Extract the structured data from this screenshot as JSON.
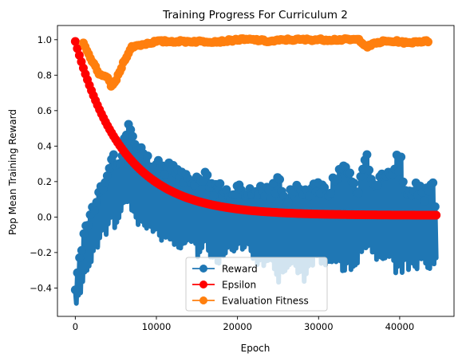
{
  "chart_data": {
    "type": "line",
    "title": "Training Progress For Curriculum 2",
    "xlabel": "Epoch",
    "ylabel": "Pop Mean Training Reward",
    "xlim": [
      -2200,
      46700
    ],
    "ylim": [
      -0.56,
      1.08
    ],
    "xticks": [
      0,
      10000,
      20000,
      30000,
      40000
    ],
    "xtick_labels": [
      "0",
      "10000",
      "20000",
      "30000",
      "40000"
    ],
    "yticks": [
      -0.4,
      -0.2,
      0.0,
      0.2,
      0.4,
      0.6,
      0.8,
      1.0
    ],
    "ytick_labels": [
      "−0.4",
      "−0.2",
      "0.0",
      "0.2",
      "0.4",
      "0.6",
      "0.8",
      "1.0"
    ],
    "grid": false,
    "legend_position": "lower-center",
    "series": [
      {
        "name": "Reward",
        "color": "#1f77b4",
        "marker": "circle",
        "envelope_x": [
          0,
          500,
          1000,
          1500,
          2000,
          2500,
          3000,
          3500,
          4000,
          4500,
          5000,
          5500,
          6000,
          6500,
          7000,
          7500,
          8000,
          8500,
          9000,
          9500,
          10000,
          11000,
          12000,
          13000,
          14000,
          15000,
          16000,
          17000,
          18000,
          19000,
          20000,
          21000,
          22000,
          23000,
          24000,
          25000,
          26000,
          27000,
          28000,
          29000,
          30000,
          31000,
          32000,
          33000,
          33500,
          34000,
          35000,
          36000,
          37000,
          38000,
          39000,
          40000,
          41000,
          42000,
          43000,
          44000,
          44500
        ],
        "envelope_high": [
          -0.4,
          -0.2,
          -0.1,
          0.0,
          0.05,
          0.1,
          0.2,
          0.15,
          0.3,
          0.4,
          0.3,
          0.35,
          0.45,
          0.55,
          0.55,
          0.4,
          0.45,
          0.38,
          0.35,
          0.3,
          0.35,
          0.3,
          0.35,
          0.28,
          0.22,
          0.25,
          0.3,
          0.2,
          0.2,
          0.15,
          0.2,
          0.15,
          0.18,
          0.22,
          0.15,
          0.25,
          0.15,
          0.2,
          0.15,
          0.22,
          0.2,
          0.18,
          0.25,
          0.42,
          0.4,
          0.28,
          0.2,
          0.38,
          0.22,
          0.25,
          0.35,
          0.38,
          0.15,
          0.22,
          0.15,
          0.25,
          0.1
        ],
        "envelope_low": [
          -0.5,
          -0.48,
          -0.4,
          -0.3,
          -0.25,
          -0.2,
          -0.15,
          -0.1,
          -0.1,
          -0.05,
          -0.1,
          0.0,
          0.05,
          0.05,
          0.0,
          -0.05,
          -0.05,
          -0.05,
          -0.1,
          -0.1,
          -0.1,
          -0.15,
          -0.15,
          -0.2,
          -0.15,
          -0.25,
          -0.2,
          -0.3,
          -0.25,
          -0.2,
          -0.2,
          -0.2,
          -0.25,
          -0.3,
          -0.25,
          -0.4,
          -0.3,
          -0.25,
          -0.4,
          -0.3,
          -0.25,
          -0.3,
          -0.3,
          -0.35,
          -0.4,
          -0.3,
          -0.25,
          -0.2,
          -0.25,
          -0.25,
          -0.3,
          -0.35,
          -0.3,
          -0.3,
          -0.25,
          -0.35,
          -0.3
        ]
      },
      {
        "name": "Epsilon",
        "color": "#ff0000",
        "marker": "circle",
        "function": "0.01 + 0.98 * exp(-x / 6000)",
        "x_start": 0,
        "x_end": 44500
      },
      {
        "name": "Evaluation Fitness",
        "color": "#ff7f0e",
        "marker": "circle",
        "x": [
          1000,
          1500,
          2000,
          2500,
          3000,
          3500,
          4000,
          4500,
          5000,
          5500,
          6000,
          6500,
          7000,
          8000,
          9000,
          10000,
          12000,
          14000,
          16000,
          18000,
          20000,
          22000,
          24000,
          26000,
          28000,
          30000,
          32000,
          34000,
          35000,
          36000,
          37000,
          38000,
          39000,
          40000,
          41000,
          42000,
          43000,
          43500
        ],
        "values": [
          0.98,
          0.93,
          0.88,
          0.85,
          0.8,
          0.79,
          0.79,
          0.73,
          0.77,
          0.82,
          0.88,
          0.92,
          0.96,
          0.97,
          0.98,
          0.99,
          0.99,
          0.99,
          0.99,
          0.99,
          1.0,
          1.0,
          0.99,
          1.0,
          1.0,
          1.0,
          1.0,
          1.0,
          1.0,
          0.96,
          0.98,
          0.99,
          0.99,
          0.99,
          0.98,
          0.99,
          0.99,
          0.99
        ]
      }
    ]
  }
}
